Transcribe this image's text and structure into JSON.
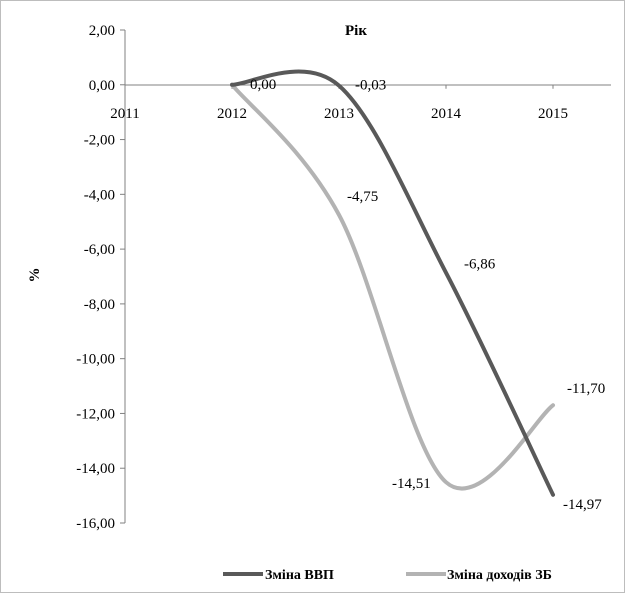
{
  "chart_data": {
    "type": "line",
    "title": "",
    "xlabel": "Рік",
    "ylabel": "%",
    "x_ticks": [
      "2011",
      "2012",
      "2013",
      "2014",
      "2015"
    ],
    "y_ticks": [
      "2,00",
      "0,00",
      "-2,00",
      "-4,00",
      "-6,00",
      "-8,00",
      "-10,00",
      "-12,00",
      "-14,00",
      "-16,00"
    ],
    "ylim": [
      -16,
      2
    ],
    "x": [
      2012,
      2013,
      2014,
      2015
    ],
    "series": [
      {
        "name": "Зміна ВВП",
        "color": "#595959",
        "values": [
          0.0,
          -0.03,
          -6.86,
          -14.97
        ],
        "labels": [
          "0,00",
          "-0,03",
          "-6,86",
          "-14,97"
        ]
      },
      {
        "name": "Зміна доходів ЗБ",
        "color": "#b3b3b3",
        "values": [
          0.0,
          -4.75,
          -14.51,
          -11.7
        ],
        "labels": [
          "",
          "-4,75",
          "-14,51",
          "-11,70"
        ]
      }
    ],
    "grid": false,
    "legend_position": "bottom"
  }
}
